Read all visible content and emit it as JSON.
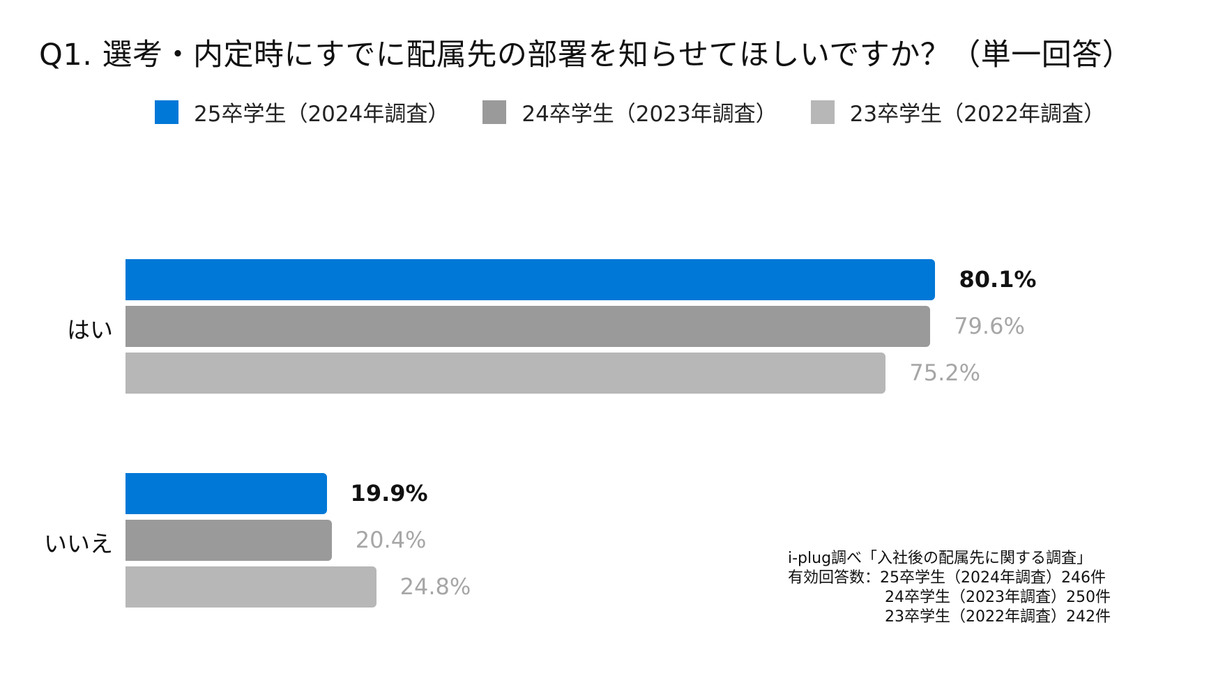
{
  "title": "Q1. 選考・内定時にすでに配属先の部署を知らせてほしいですか？（単一回答）",
  "chart_data": {
    "type": "bar",
    "orientation": "horizontal",
    "categories": [
      "はい",
      "いいえ"
    ],
    "series": [
      {
        "name": "25卒学生（2024年調査）",
        "color": "#0078d7",
        "values": [
          80.1,
          19.9
        ],
        "labels": [
          "80.1%",
          "19.9%"
        ],
        "emphasis": true
      },
      {
        "name": "24卒学生（2023年調査）",
        "color": "#9a9a9a",
        "values": [
          79.6,
          20.4
        ],
        "labels": [
          "79.6%",
          "20.4%"
        ],
        "emphasis": false
      },
      {
        "name": "23卒学生（2022年調査）",
        "color": "#b7b7b7",
        "values": [
          75.2,
          24.8
        ],
        "labels": [
          "75.2%",
          "24.8%"
        ],
        "emphasis": false
      }
    ],
    "xlim": [
      0,
      100
    ],
    "legend": "top",
    "grid": false
  },
  "source": {
    "line1": "i-plug調べ「入社後の配属先に関する調査」",
    "line2": "有効回答数：25卒学生（2024年調査）246件",
    "line3": "24卒学生（2023年調査）250件",
    "line4": "23卒学生（2022年調査）242件"
  }
}
